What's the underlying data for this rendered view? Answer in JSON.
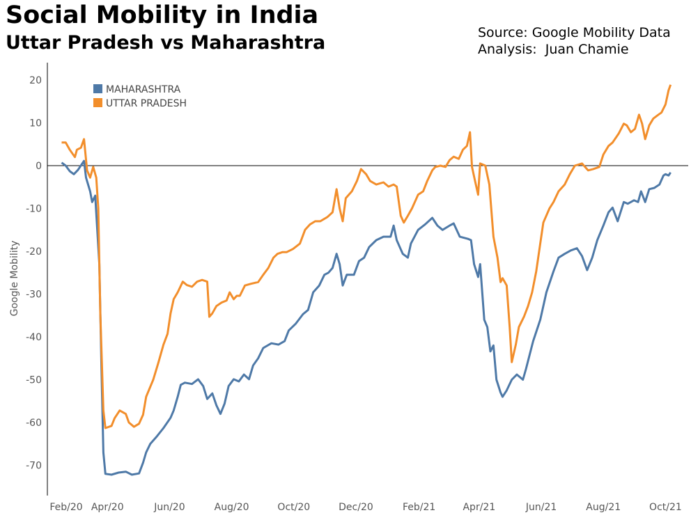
{
  "header": {
    "title": "Social Mobility in India",
    "subtitle": "Uttar Pradesh vs Maharashtra",
    "source": "Source: Google Mobility Data",
    "analysis": "Analysis:  Juan Chamie"
  },
  "chart_data": {
    "type": "line",
    "title": "Social Mobility in India",
    "subtitle": "Uttar Pradesh vs Maharashtra",
    "xlabel": "",
    "ylabel": "Google Mobility",
    "x_unit": "days since 2020-02-15",
    "xlim": [
      0,
      599
    ],
    "ylim": [
      -77,
      24
    ],
    "y_ticks": [
      20,
      10,
      0,
      -10,
      -20,
      -30,
      -40,
      -50,
      -60,
      -70
    ],
    "x_ticks": [
      {
        "label": "Feb/20",
        "day": 0
      },
      {
        "label": "Apr/20",
        "day": 46
      },
      {
        "label": "Jun/20",
        "day": 107
      },
      {
        "label": "Aug/20",
        "day": 168
      },
      {
        "label": "Oct/20",
        "day": 229
      },
      {
        "label": "Dec/20",
        "day": 290
      },
      {
        "label": "Feb/21",
        "day": 352
      },
      {
        "label": "Apr/21",
        "day": 411
      },
      {
        "label": "Jun/21",
        "day": 472
      },
      {
        "label": "Aug/21",
        "day": 533
      },
      {
        "label": "Oct/21",
        "day": 594
      }
    ],
    "zero_line": true,
    "grid": false,
    "legend_position": "top-left",
    "series": [
      {
        "name": "MAHARASHTRA",
        "color": "#4e79a7",
        "points": [
          [
            1,
            0.7
          ],
          [
            5,
            0
          ],
          [
            9,
            -1.3
          ],
          [
            13,
            -2
          ],
          [
            17,
            -1
          ],
          [
            23,
            1.1
          ],
          [
            25,
            -2.8
          ],
          [
            29,
            -6
          ],
          [
            31,
            -8.5
          ],
          [
            34,
            -7
          ],
          [
            38,
            -23
          ],
          [
            40,
            -46
          ],
          [
            42,
            -67
          ],
          [
            44,
            -72
          ],
          [
            50,
            -72.2
          ],
          [
            57,
            -71.7
          ],
          [
            64,
            -71.5
          ],
          [
            70,
            -72.2
          ],
          [
            77,
            -71.9
          ],
          [
            81,
            -69.4
          ],
          [
            84,
            -67
          ],
          [
            88,
            -65
          ],
          [
            94,
            -63.4
          ],
          [
            101,
            -61.3
          ],
          [
            108,
            -58.9
          ],
          [
            111,
            -57.2
          ],
          [
            115,
            -54
          ],
          [
            118,
            -51.2
          ],
          [
            122,
            -50.7
          ],
          [
            129,
            -51
          ],
          [
            135,
            -49.9
          ],
          [
            140,
            -51.5
          ],
          [
            144,
            -54.5
          ],
          [
            149,
            -53.2
          ],
          [
            153,
            -56
          ],
          [
            157,
            -58
          ],
          [
            161,
            -55.6
          ],
          [
            165,
            -51.5
          ],
          [
            170,
            -49.9
          ],
          [
            175,
            -50.4
          ],
          [
            180,
            -48.8
          ],
          [
            185,
            -49.9
          ],
          [
            189,
            -46.7
          ],
          [
            194,
            -45
          ],
          [
            199,
            -42.6
          ],
          [
            207,
            -41.5
          ],
          [
            214,
            -41.8
          ],
          [
            220,
            -41
          ],
          [
            224,
            -38.5
          ],
          [
            231,
            -36.9
          ],
          [
            238,
            -34.7
          ],
          [
            243,
            -33.7
          ],
          [
            248,
            -29.6
          ],
          [
            254,
            -28
          ],
          [
            259,
            -25.5
          ],
          [
            263,
            -25
          ],
          [
            267,
            -23.9
          ],
          [
            271,
            -20.6
          ],
          [
            274,
            -23
          ],
          [
            277,
            -28
          ],
          [
            281,
            -25.5
          ],
          [
            288,
            -25.5
          ],
          [
            293,
            -22.3
          ],
          [
            298,
            -21.5
          ],
          [
            303,
            -19
          ],
          [
            310,
            -17.4
          ],
          [
            317,
            -16.6
          ],
          [
            324,
            -16.6
          ],
          [
            327,
            -14
          ],
          [
            330,
            -17.4
          ],
          [
            336,
            -20.6
          ],
          [
            341,
            -21.5
          ],
          [
            344,
            -18.2
          ],
          [
            351,
            -15
          ],
          [
            358,
            -13.7
          ],
          [
            365,
            -12.2
          ],
          [
            370,
            -14
          ],
          [
            375,
            -15
          ],
          [
            382,
            -14
          ],
          [
            386,
            -13.5
          ],
          [
            392,
            -16.6
          ],
          [
            400,
            -17.1
          ],
          [
            403,
            -17.4
          ],
          [
            406,
            -23
          ],
          [
            410,
            -26
          ],
          [
            412,
            -23
          ],
          [
            416,
            -36
          ],
          [
            419,
            -37.7
          ],
          [
            422,
            -43.4
          ],
          [
            425,
            -42
          ],
          [
            428,
            -50
          ],
          [
            432,
            -53
          ],
          [
            434,
            -54
          ],
          [
            438,
            -52.5
          ],
          [
            443,
            -50
          ],
          [
            448,
            -48.8
          ],
          [
            454,
            -50
          ],
          [
            457,
            -47.5
          ],
          [
            464,
            -41
          ],
          [
            471,
            -36
          ],
          [
            477,
            -29.6
          ],
          [
            484,
            -24.7
          ],
          [
            489,
            -21.5
          ],
          [
            495,
            -20.6
          ],
          [
            501,
            -19.8
          ],
          [
            507,
            -19.3
          ],
          [
            512,
            -21.1
          ],
          [
            517,
            -24.4
          ],
          [
            522,
            -21.5
          ],
          [
            527,
            -17.4
          ],
          [
            533,
            -14
          ],
          [
            538,
            -10.9
          ],
          [
            542,
            -9.8
          ],
          [
            547,
            -13
          ],
          [
            553,
            -8.5
          ],
          [
            557,
            -8.9
          ],
          [
            563,
            -8.1
          ],
          [
            567,
            -8.5
          ],
          [
            570,
            -6
          ],
          [
            574,
            -8.5
          ],
          [
            578,
            -5.5
          ],
          [
            583,
            -5.2
          ],
          [
            588,
            -4.4
          ],
          [
            592,
            -2.3
          ],
          [
            594,
            -2
          ],
          [
            597,
            -2.3
          ],
          [
            599,
            -1.6
          ]
        ]
      },
      {
        "name": "UTTAR PRADESH",
        "color": "#f28e2b",
        "points": [
          [
            1,
            5.4
          ],
          [
            5,
            5.4
          ],
          [
            9,
            3.7
          ],
          [
            14,
            2
          ],
          [
            16,
            3.7
          ],
          [
            20,
            4.2
          ],
          [
            23,
            6.2
          ],
          [
            26,
            -1.1
          ],
          [
            29,
            -2.8
          ],
          [
            32,
            -0.3
          ],
          [
            35,
            -2.8
          ],
          [
            37,
            -10
          ],
          [
            39,
            -34.5
          ],
          [
            42,
            -57.2
          ],
          [
            44,
            -61.3
          ],
          [
            50,
            -60.8
          ],
          [
            53,
            -59
          ],
          [
            58,
            -57.2
          ],
          [
            64,
            -58
          ],
          [
            67,
            -60
          ],
          [
            72,
            -61
          ],
          [
            77,
            -60.3
          ],
          [
            81,
            -58.2
          ],
          [
            84,
            -54
          ],
          [
            91,
            -50
          ],
          [
            96,
            -46
          ],
          [
            101,
            -41.8
          ],
          [
            105,
            -39.3
          ],
          [
            108,
            -34.5
          ],
          [
            111,
            -31.2
          ],
          [
            115,
            -29.6
          ],
          [
            120,
            -27.1
          ],
          [
            124,
            -27.9
          ],
          [
            129,
            -28.3
          ],
          [
            134,
            -27.1
          ],
          [
            139,
            -26.7
          ],
          [
            144,
            -27.1
          ],
          [
            146,
            -35.3
          ],
          [
            149,
            -34.5
          ],
          [
            153,
            -32.8
          ],
          [
            158,
            -32
          ],
          [
            163,
            -31.5
          ],
          [
            166,
            -29.6
          ],
          [
            170,
            -31.2
          ],
          [
            173,
            -30.4
          ],
          [
            176,
            -30.4
          ],
          [
            181,
            -28
          ],
          [
            187,
            -27.6
          ],
          [
            194,
            -27.2
          ],
          [
            199,
            -25.5
          ],
          [
            204,
            -23.9
          ],
          [
            209,
            -21.5
          ],
          [
            213,
            -20.6
          ],
          [
            218,
            -20.2
          ],
          [
            222,
            -20.2
          ],
          [
            228,
            -19.5
          ],
          [
            235,
            -18.2
          ],
          [
            240,
            -15
          ],
          [
            245,
            -13.7
          ],
          [
            250,
            -13
          ],
          [
            255,
            -13
          ],
          [
            262,
            -12
          ],
          [
            267,
            -10.9
          ],
          [
            271,
            -5.5
          ],
          [
            274,
            -10
          ],
          [
            277,
            -13
          ],
          [
            280,
            -7.6
          ],
          [
            286,
            -6
          ],
          [
            291,
            -3.6
          ],
          [
            295,
            -0.8
          ],
          [
            300,
            -2
          ],
          [
            304,
            -3.6
          ],
          [
            310,
            -4.4
          ],
          [
            317,
            -3.9
          ],
          [
            322,
            -4.9
          ],
          [
            327,
            -4.4
          ],
          [
            330,
            -4.9
          ],
          [
            334,
            -11.7
          ],
          [
            337,
            -13.3
          ],
          [
            341,
            -11.7
          ],
          [
            345,
            -10
          ],
          [
            351,
            -6.8
          ],
          [
            356,
            -6
          ],
          [
            360,
            -3.6
          ],
          [
            365,
            -1.1
          ],
          [
            368,
            -0.3
          ],
          [
            373,
            0
          ],
          [
            378,
            -0.3
          ],
          [
            382,
            1.3
          ],
          [
            386,
            2.1
          ],
          [
            391,
            1.6
          ],
          [
            395,
            3.7
          ],
          [
            399,
            4.6
          ],
          [
            402,
            7.8
          ],
          [
            404,
            -0.3
          ],
          [
            407,
            -3.6
          ],
          [
            410,
            -6.8
          ],
          [
            412,
            0.5
          ],
          [
            417,
            0
          ],
          [
            421,
            -4.4
          ],
          [
            425,
            -16.6
          ],
          [
            429,
            -21.5
          ],
          [
            432,
            -27.2
          ],
          [
            434,
            -26.3
          ],
          [
            438,
            -28
          ],
          [
            441,
            -37.7
          ],
          [
            443,
            -45.9
          ],
          [
            447,
            -41.8
          ],
          [
            450,
            -37.7
          ],
          [
            455,
            -35.3
          ],
          [
            459,
            -32.8
          ],
          [
            463,
            -29.6
          ],
          [
            467,
            -24.7
          ],
          [
            471,
            -18.2
          ],
          [
            474,
            -13.3
          ],
          [
            480,
            -10
          ],
          [
            484,
            -8.5
          ],
          [
            489,
            -6
          ],
          [
            495,
            -4.4
          ],
          [
            500,
            -2
          ],
          [
            505,
            0
          ],
          [
            512,
            0.5
          ],
          [
            518,
            -1.1
          ],
          [
            523,
            -0.8
          ],
          [
            529,
            -0.3
          ],
          [
            533,
            2.6
          ],
          [
            538,
            4.6
          ],
          [
            542,
            5.4
          ],
          [
            548,
            7.5
          ],
          [
            553,
            9.8
          ],
          [
            556,
            9.4
          ],
          [
            560,
            7.8
          ],
          [
            564,
            8.6
          ],
          [
            568,
            11.9
          ],
          [
            571,
            9.8
          ],
          [
            574,
            6.2
          ],
          [
            578,
            9.4
          ],
          [
            582,
            11
          ],
          [
            587,
            11.9
          ],
          [
            590,
            12.4
          ],
          [
            594,
            14.3
          ],
          [
            597,
            17.6
          ],
          [
            599,
            18.9
          ]
        ]
      }
    ]
  }
}
